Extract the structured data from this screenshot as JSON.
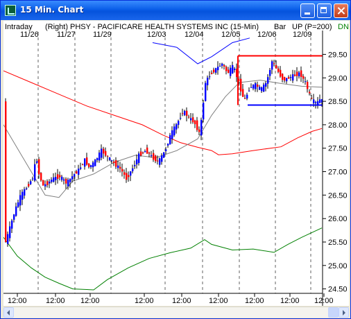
{
  "window": {
    "title": "15 Min. Chart"
  },
  "header": {
    "mode": "Intraday",
    "axis_side": "(Right)",
    "symbol_desc": "PHSY - PACIFICARE HEALTH SYSTEMS INC  (15-Min)",
    "bar_type": "Bar",
    "indicator": "UP (P=200)",
    "tag": "DN"
  },
  "chart_data": {
    "type": "line",
    "date_labels": [
      "11/26",
      "11/27",
      "11/29",
      "12/03",
      "12/04",
      "12/05",
      "12/06",
      "12/09"
    ],
    "time_labels": [
      "12:00",
      "12:00",
      "12:00",
      "12:00",
      "12:00",
      "12:00",
      "12:00",
      "12:00",
      "12:00"
    ],
    "y_ticks": [
      "29.50",
      "29.00",
      "28.50",
      "28.00",
      "27.50",
      "27.00",
      "26.50",
      "26.00",
      "25.50",
      "25.00",
      "24.50"
    ],
    "ylim": [
      24.45,
      29.95
    ],
    "resistance": 29.47,
    "support": 28.42,
    "series": [
      {
        "color": "#ff0000",
        "values": [
          [
            0,
            29.15
          ],
          [
            40,
            28.9
          ],
          [
            80,
            28.65
          ],
          [
            120,
            28.4
          ],
          [
            160,
            28.2
          ],
          [
            200,
            28.0
          ],
          [
            230,
            27.78
          ],
          [
            255,
            27.62
          ],
          [
            280,
            27.52
          ],
          [
            300,
            27.45
          ],
          [
            310,
            27.36
          ],
          [
            330,
            27.38
          ],
          [
            360,
            27.45
          ],
          [
            400,
            27.53
          ],
          [
            424,
            27.72
          ],
          [
            445,
            27.86
          ],
          [
            459,
            27.92
          ]
        ]
      },
      {
        "color": "#0000ff",
        "values": [
          [
            215,
            29.75
          ],
          [
            250,
            29.65
          ],
          [
            280,
            29.3
          ],
          [
            300,
            29.45
          ],
          [
            330,
            29.75
          ],
          [
            355,
            29.85
          ]
        ]
      },
      {
        "color": "#808080",
        "values": [
          [
            0,
            28.0
          ],
          [
            20,
            27.5
          ],
          [
            40,
            27.0
          ],
          [
            60,
            26.5
          ],
          [
            80,
            26.45
          ],
          [
            100,
            26.8
          ],
          [
            130,
            26.95
          ],
          [
            160,
            27.2
          ],
          [
            190,
            27.35
          ],
          [
            220,
            27.3
          ],
          [
            250,
            27.45
          ],
          [
            280,
            27.7
          ],
          [
            300,
            28.2
          ],
          [
            320,
            28.6
          ],
          [
            340,
            28.9
          ],
          [
            370,
            28.95
          ],
          [
            400,
            28.88
          ],
          [
            430,
            28.82
          ],
          [
            459,
            28.8
          ]
        ]
      },
      {
        "color": "#008000",
        "values": [
          [
            0,
            25.6
          ],
          [
            20,
            25.2
          ],
          [
            40,
            24.95
          ],
          [
            60,
            24.75
          ],
          [
            80,
            24.62
          ],
          [
            100,
            24.5
          ],
          [
            130,
            24.48
          ],
          [
            150,
            24.7
          ],
          [
            180,
            24.95
          ],
          [
            210,
            25.15
          ],
          [
            240,
            25.27
          ],
          [
            270,
            25.37
          ],
          [
            290,
            25.55
          ],
          [
            300,
            25.45
          ],
          [
            330,
            25.33
          ],
          [
            360,
            25.35
          ],
          [
            390,
            25.28
          ],
          [
            410,
            25.45
          ],
          [
            430,
            25.6
          ],
          [
            459,
            25.8
          ]
        ]
      }
    ],
    "up_color": "#0000ff",
    "down_color": "#ff0000",
    "price_path": [
      [
        0,
        25.4
      ],
      [
        8,
        25.8
      ],
      [
        16,
        26.2
      ],
      [
        24,
        26.5
      ],
      [
        34,
        26.7
      ],
      [
        42,
        26.9
      ],
      [
        46,
        27.35
      ],
      [
        50,
        26.95
      ],
      [
        56,
        26.7
      ],
      [
        62,
        26.75
      ],
      [
        70,
        26.85
      ],
      [
        80,
        26.9
      ],
      [
        90,
        26.75
      ],
      [
        98,
        26.9
      ],
      [
        108,
        27.05
      ],
      [
        116,
        27.25
      ],
      [
        122,
        27.1
      ],
      [
        130,
        27.2
      ],
      [
        140,
        27.45
      ],
      [
        150,
        27.3
      ],
      [
        160,
        27.15
      ],
      [
        168,
        27.05
      ],
      [
        176,
        26.85
      ],
      [
        186,
        27.1
      ],
      [
        194,
        27.35
      ],
      [
        204,
        27.45
      ],
      [
        214,
        27.3
      ],
      [
        222,
        27.2
      ],
      [
        232,
        27.45
      ],
      [
        240,
        27.8
      ],
      [
        250,
        28.05
      ],
      [
        258,
        28.3
      ],
      [
        266,
        28.15
      ],
      [
        274,
        28.05
      ],
      [
        282,
        27.8
      ],
      [
        290,
        28.9
      ],
      [
        298,
        29.1
      ],
      [
        306,
        29.2
      ],
      [
        314,
        29.3
      ],
      [
        322,
        29.1
      ],
      [
        330,
        29.25
      ],
      [
        338,
        28.9
      ],
      [
        346,
        28.5
      ],
      [
        354,
        28.8
      ],
      [
        362,
        28.85
      ],
      [
        370,
        28.75
      ],
      [
        378,
        28.9
      ],
      [
        386,
        29.35
      ],
      [
        394,
        29.15
      ],
      [
        402,
        28.95
      ],
      [
        410,
        29.0
      ],
      [
        418,
        29.05
      ],
      [
        426,
        29.1
      ],
      [
        434,
        28.9
      ],
      [
        442,
        28.55
      ],
      [
        450,
        28.45
      ],
      [
        456,
        28.55
      ],
      [
        459,
        28.5
      ]
    ]
  }
}
